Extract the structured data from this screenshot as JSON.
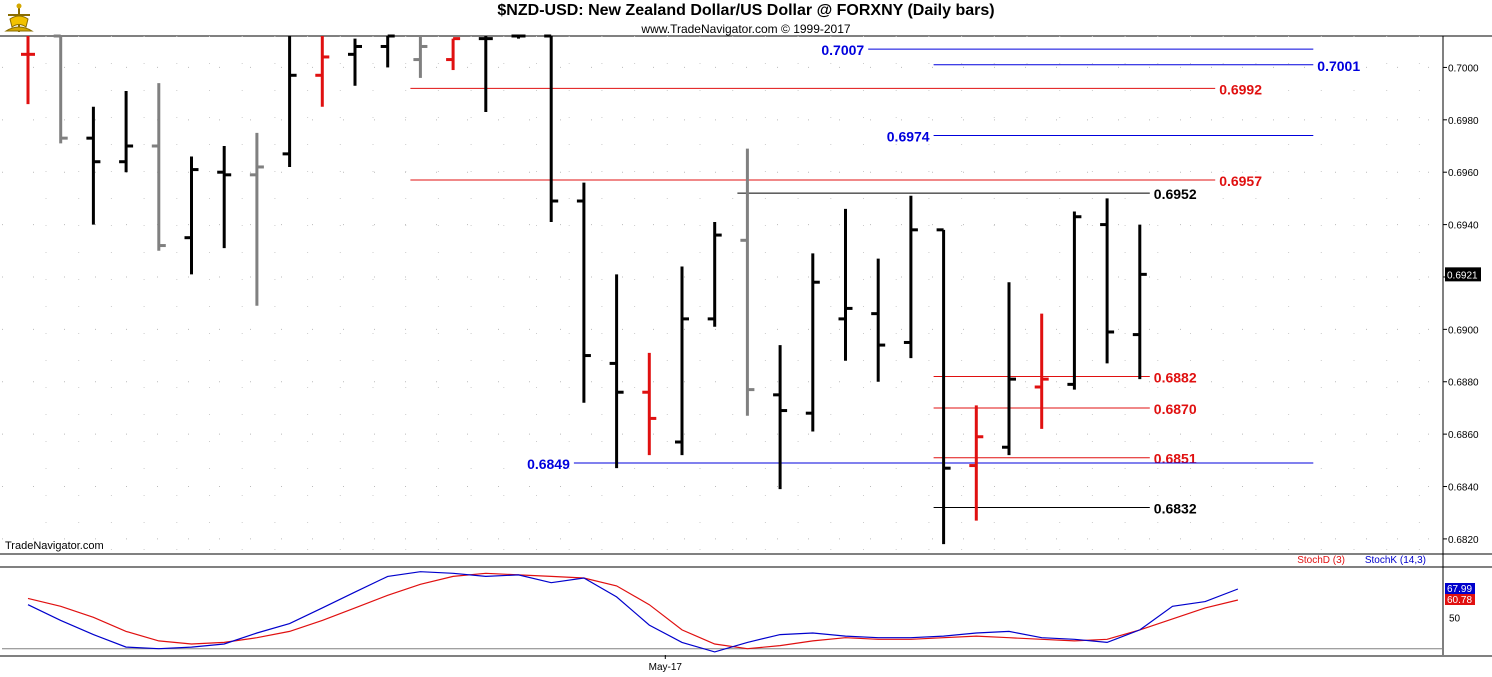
{
  "header": {
    "title": "$NZD-USD:  New Zealand Dollar/US Dollar @ FORXNY  (Daily bars)",
    "copyright": "www.TradeNavigator.com © 1999-2017",
    "watermark": "TradeNavigator.com"
  },
  "colors": {
    "bar_up": "#000000",
    "bar_down": "#e01010",
    "bar_neutral": "#808080",
    "bar_highlight": "#22cc22",
    "level_red": "#e01010",
    "level_blue": "#0000dd",
    "level_black": "#000000",
    "stoch_d": "#e01010",
    "stoch_k": "#0000cc"
  },
  "chart_data": [
    {
      "type": "ohlc",
      "title": "$NZD-USD:  New Zealand Dollar/US Dollar @ FORXNY  (Daily bars)",
      "ylim": [
        0.6815,
        0.7012
      ],
      "y_ticks": [
        "0.7000",
        "0.6980",
        "0.6960",
        "0.6940",
        "0.6920",
        "0.6900",
        "0.6880",
        "0.6860",
        "0.6840",
        "0.6820"
      ],
      "last_price": "0.6921",
      "x_tick_label": "May-17",
      "x_tick_bar_index": 19,
      "bars": [
        {
          "o": 0.7005,
          "h": 0.7012,
          "l": 0.6986,
          "c": 0.7005,
          "color": "down"
        },
        {
          "o": 0.7012,
          "h": 0.7012,
          "l": 0.6971,
          "c": 0.6973,
          "color": "neutral"
        },
        {
          "o": 0.6973,
          "h": 0.6985,
          "l": 0.694,
          "c": 0.6964,
          "color": "up"
        },
        {
          "o": 0.6964,
          "h": 0.6991,
          "l": 0.696,
          "c": 0.697,
          "color": "up"
        },
        {
          "o": 0.697,
          "h": 0.6994,
          "l": 0.693,
          "c": 0.6932,
          "color": "neutral"
        },
        {
          "o": 0.6935,
          "h": 0.6966,
          "l": 0.6921,
          "c": 0.6961,
          "color": "up"
        },
        {
          "o": 0.696,
          "h": 0.697,
          "l": 0.6931,
          "c": 0.6959,
          "color": "up"
        },
        {
          "o": 0.6959,
          "h": 0.6975,
          "l": 0.6909,
          "c": 0.6962,
          "color": "neutral"
        },
        {
          "o": 0.6967,
          "h": 0.7012,
          "l": 0.6962,
          "c": 0.6997,
          "color": "up"
        },
        {
          "o": 0.6997,
          "h": 0.7012,
          "l": 0.6985,
          "c": 0.7004,
          "color": "down"
        },
        {
          "o": 0.7005,
          "h": 0.7011,
          "l": 0.6993,
          "c": 0.7008,
          "color": "up"
        },
        {
          "o": 0.7008,
          "h": 0.7012,
          "l": 0.7,
          "c": 0.7012,
          "color": "up"
        },
        {
          "o": 0.7003,
          "h": 0.7012,
          "l": 0.6996,
          "c": 0.7008,
          "color": "neutral"
        },
        {
          "o": 0.7003,
          "h": 0.7011,
          "l": 0.6999,
          "c": 0.7011,
          "color": "down"
        },
        {
          "o": 0.7011,
          "h": 0.7012,
          "l": 0.6983,
          "c": 0.7011,
          "color": "up"
        },
        {
          "o": 0.7012,
          "h": 0.7012,
          "l": 0.7011,
          "c": 0.7012,
          "color": "up"
        },
        {
          "o": 0.7012,
          "h": 0.7012,
          "l": 0.6941,
          "c": 0.6949,
          "color": "up"
        },
        {
          "o": 0.6949,
          "h": 0.6956,
          "l": 0.6872,
          "c": 0.689,
          "color": "up"
        },
        {
          "o": 0.6887,
          "h": 0.6921,
          "l": 0.6847,
          "c": 0.6876,
          "color": "up"
        },
        {
          "o": 0.6876,
          "h": 0.6891,
          "l": 0.6852,
          "c": 0.6866,
          "color": "down"
        },
        {
          "o": 0.6857,
          "h": 0.6924,
          "l": 0.6852,
          "c": 0.6904,
          "color": "up"
        },
        {
          "o": 0.6904,
          "h": 0.6941,
          "l": 0.6901,
          "c": 0.6936,
          "color": "up"
        },
        {
          "o": 0.6934,
          "h": 0.6969,
          "l": 0.6867,
          "c": 0.6877,
          "color": "neutral"
        },
        {
          "o": 0.6875,
          "h": 0.6894,
          "l": 0.6839,
          "c": 0.6869,
          "color": "up"
        },
        {
          "o": 0.6868,
          "h": 0.6929,
          "l": 0.6861,
          "c": 0.6918,
          "color": "up"
        },
        {
          "o": 0.6904,
          "h": 0.6946,
          "l": 0.6888,
          "c": 0.6908,
          "color": "up"
        },
        {
          "o": 0.6906,
          "h": 0.6927,
          "l": 0.688,
          "c": 0.6894,
          "color": "up"
        },
        {
          "o": 0.6895,
          "h": 0.6951,
          "l": 0.6889,
          "c": 0.6938,
          "color": "up"
        },
        {
          "o": 0.6938,
          "h": 0.6938,
          "l": 0.6818,
          "c": 0.6847,
          "color": "up"
        },
        {
          "o": 0.6848,
          "h": 0.6871,
          "l": 0.6827,
          "c": 0.6859,
          "color": "down"
        },
        {
          "o": 0.6855,
          "h": 0.6918,
          "l": 0.6852,
          "c": 0.6881,
          "color": "up"
        },
        {
          "o": 0.6878,
          "h": 0.6906,
          "l": 0.6862,
          "c": 0.6881,
          "color": "down"
        },
        {
          "o": 0.6879,
          "h": 0.6945,
          "l": 0.6877,
          "c": 0.6943,
          "color": "up"
        },
        {
          "o": 0.694,
          "h": 0.695,
          "l": 0.6887,
          "c": 0.6899,
          "color": "up"
        },
        {
          "o": 0.6898,
          "h": 0.694,
          "l": 0.6881,
          "c": 0.6921,
          "color": "up"
        }
      ],
      "levels": [
        {
          "value": 0.7007,
          "label": "0.7007",
          "color": "blue",
          "from_bar": 26,
          "to_bar": 39,
          "label_side": "left"
        },
        {
          "value": 0.7001,
          "label": "0.7001",
          "color": "blue",
          "from_bar": 28,
          "to_bar": 39,
          "label_side": "right"
        },
        {
          "value": 0.6992,
          "label": "0.6992",
          "color": "red",
          "from_bar": 12,
          "to_bar": 36,
          "label_side": "right"
        },
        {
          "value": 0.6974,
          "label": "0.6974",
          "color": "blue",
          "from_bar": 28,
          "to_bar": 39,
          "label_side": "left"
        },
        {
          "value": 0.6957,
          "label": "0.6957",
          "color": "red",
          "from_bar": 12,
          "to_bar": 36,
          "label_side": "right"
        },
        {
          "value": 0.6952,
          "label": "0.6952",
          "color": "black",
          "from_bar": 22,
          "to_bar": 34,
          "label_side": "right"
        },
        {
          "value": 0.6882,
          "label": "0.6882",
          "color": "red",
          "from_bar": 28,
          "to_bar": 34,
          "label_side": "right"
        },
        {
          "value": 0.687,
          "label": "0.6870",
          "color": "red",
          "from_bar": 28,
          "to_bar": 34,
          "label_side": "right"
        },
        {
          "value": 0.6851,
          "label": "0.6851",
          "color": "red",
          "from_bar": 28,
          "to_bar": 34,
          "label_side": "right"
        },
        {
          "value": 0.6849,
          "label": "0.6849",
          "color": "blue",
          "from_bar": 17,
          "to_bar": 39,
          "label_side": "left"
        },
        {
          "value": 0.6832,
          "label": "0.6832",
          "color": "black",
          "from_bar": 28,
          "to_bar": 34,
          "label_side": "right"
        }
      ]
    },
    {
      "type": "line",
      "title": "Stochastic",
      "ylim": [
        26,
        82
      ],
      "y_tick_label": "50",
      "y_tick_value": 50,
      "reference_line": 30,
      "series": [
        {
          "name": "StochD (3)",
          "color": "red",
          "last_label": "60.78",
          "values": [
            62,
            57,
            50,
            41,
            35,
            33,
            34,
            37,
            41,
            48,
            56,
            64,
            71,
            76,
            78,
            77,
            76,
            75,
            70,
            58,
            42,
            33,
            30,
            32,
            35,
            37,
            36,
            36,
            37,
            38,
            37,
            36,
            35,
            36,
            42,
            49,
            56,
            61
          ]
        },
        {
          "name": "StochK (14,3)",
          "color": "blue",
          "last_label": "67.99",
          "values": [
            58,
            48,
            39,
            31,
            30,
            31,
            33,
            40,
            46,
            56,
            66,
            76,
            79,
            78,
            76,
            77,
            72,
            75,
            63,
            45,
            34,
            28,
            34,
            39,
            40,
            38,
            37,
            37,
            38,
            40,
            41,
            37,
            36,
            34,
            42,
            57,
            60,
            68
          ]
        }
      ]
    }
  ]
}
